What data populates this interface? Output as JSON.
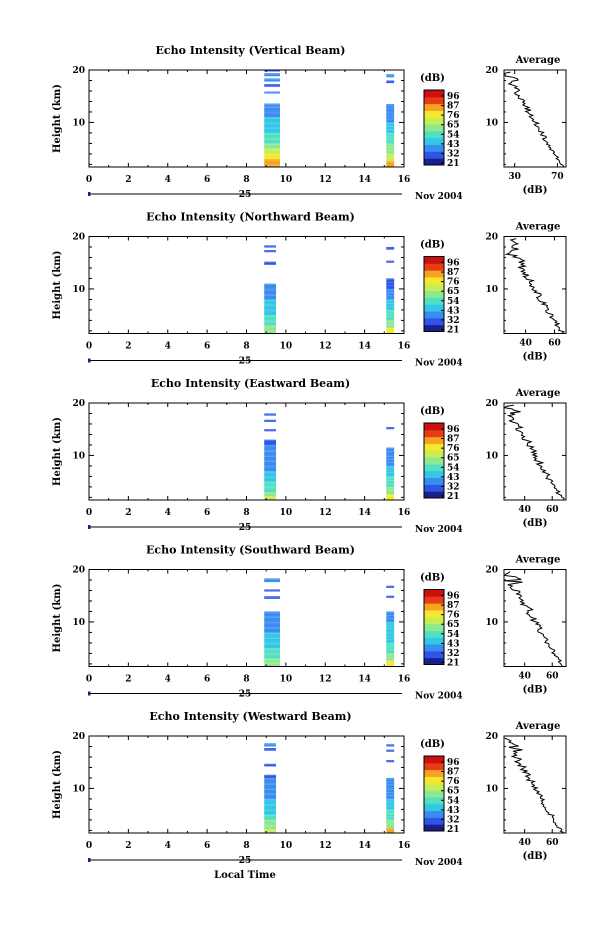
{
  "figure": {
    "xlabel": "Local Time",
    "date_day": "25",
    "date_month_year": "Nov 2004",
    "colorbar_label": "(dB)",
    "colorbar_ticks": [
      "96",
      "87",
      "76",
      "65",
      "54",
      "43",
      "32",
      "21"
    ],
    "avg_title": "Average",
    "avg_xlabel": "(dB)",
    "ylabel": "Height (km)",
    "colors": {
      "scale": [
        "#1a1f8c",
        "#2e55e6",
        "#3a8cf0",
        "#33c7e6",
        "#52e0c2",
        "#8de890",
        "#c9ee55",
        "#f5e830",
        "#f7a31f",
        "#e83b18",
        "#cc1010"
      ]
    }
  },
  "chart_data": [
    {
      "type": "heatmap",
      "title": "Echo Intensity (Vertical Beam)",
      "x_ticks": [
        "0",
        "2",
        "4",
        "6",
        "8",
        "10",
        "12",
        "14",
        "16"
      ],
      "y_ticks": [
        "20",
        "10"
      ],
      "xlim": [
        0,
        16
      ],
      "ylim": [
        1.5,
        20
      ],
      "blocks": [
        {
          "x0": 8.9,
          "x1": 9.7,
          "rows": [
            [
              1.5,
              2,
              8.3
            ],
            [
              2,
              3,
              7.5
            ],
            [
              3,
              4,
              6.5
            ],
            [
              4,
              5,
              5.6
            ],
            [
              5,
              6,
              5.0
            ],
            [
              6,
              7,
              4.3
            ],
            [
              7,
              8,
              3.9
            ],
            [
              8,
              9,
              3.4
            ],
            [
              9,
              10,
              3.0
            ],
            [
              10,
              11,
              2.7
            ],
            [
              11,
              12,
              2.4
            ],
            [
              12,
              13,
              2.0
            ],
            [
              13,
              13.6,
              1.6
            ],
            [
              15.5,
              15.9,
              1.6
            ],
            [
              16.8,
              17.3,
              1.4
            ],
            [
              17.8,
              18.4,
              1.8
            ],
            [
              18.8,
              19.4,
              1.6
            ],
            [
              19.7,
              20,
              1.4
            ]
          ]
        },
        {
          "x0": 15.1,
          "x1": 15.5,
          "rows": [
            [
              1.5,
              2.6,
              7.5
            ],
            [
              2.6,
              4,
              6.2
            ],
            [
              4,
              6,
              5.0
            ],
            [
              6,
              8,
              4.0
            ],
            [
              8,
              10,
              3.0
            ],
            [
              10,
              12,
              2.3
            ],
            [
              12,
              13.5,
              1.5
            ],
            [
              17.5,
              18,
              1.4
            ],
            [
              18.6,
              19.2,
              1.5
            ]
          ]
        }
      ],
      "avg": {
        "xlim": [
          20,
          78
        ],
        "x_ticks": [
          "30",
          "70"
        ],
        "y_ticks": [
          "20",
          "10"
        ]
      }
    },
    {
      "type": "heatmap",
      "title": "Echo Intensity (Northward Beam)",
      "x_ticks": [
        "0",
        "2",
        "4",
        "6",
        "8",
        "10",
        "12",
        "14",
        "16"
      ],
      "y_ticks": [
        "20",
        "10"
      ],
      "xlim": [
        0,
        16
      ],
      "ylim": [
        1.5,
        20
      ],
      "blocks": [
        {
          "x0": 8.9,
          "x1": 9.5,
          "rows": [
            [
              1.5,
              2,
              5.2
            ],
            [
              2,
              3,
              4.6
            ],
            [
              3,
              4,
              4.1
            ],
            [
              4,
              5,
              3.7
            ],
            [
              5,
              6,
              3.3
            ],
            [
              6,
              7,
              2.9
            ],
            [
              7,
              8,
              2.5
            ],
            [
              8,
              9,
              2.2
            ],
            [
              9,
              10,
              1.9
            ],
            [
              10,
              11,
              1.6
            ],
            [
              14.6,
              15.2,
              1.3
            ],
            [
              17,
              17.4,
              1.3
            ],
            [
              17.9,
              18.3,
              1.3
            ]
          ]
        },
        {
          "x0": 15.1,
          "x1": 15.5,
          "rows": [
            [
              1.5,
              2.6,
              7.2
            ],
            [
              2.6,
              4,
              5.2
            ],
            [
              4,
              6,
              4.0
            ],
            [
              6,
              8,
              3.0
            ],
            [
              8,
              10,
              2.1
            ],
            [
              10,
              12,
              1.4
            ],
            [
              15,
              15.4,
              1.3
            ],
            [
              17.5,
              18,
              1.3
            ]
          ]
        }
      ],
      "avg": {
        "xlim": [
          25,
          68
        ],
        "x_ticks": [
          "40",
          "60"
        ],
        "y_ticks": [
          "20",
          "10"
        ]
      }
    },
    {
      "type": "heatmap",
      "title": "Echo Intensity (Eastward Beam)",
      "x_ticks": [
        "0",
        "2",
        "4",
        "6",
        "8",
        "10",
        "12",
        "14",
        "16"
      ],
      "y_ticks": [
        "20",
        "10"
      ],
      "xlim": [
        0,
        16
      ],
      "ylim": [
        1.5,
        20
      ],
      "blocks": [
        {
          "x0": 8.9,
          "x1": 9.5,
          "rows": [
            [
              1.5,
              2.2,
              5.8
            ],
            [
              2.2,
              3,
              5.0
            ],
            [
              3,
              4,
              4.3
            ],
            [
              4,
              5,
              3.6
            ],
            [
              5,
              6,
              3.0
            ],
            [
              6,
              7,
              2.6
            ],
            [
              7,
              8,
              2.2
            ],
            [
              8,
              9,
              1.9
            ],
            [
              9,
              10,
              1.7
            ],
            [
              10,
              11,
              1.6
            ],
            [
              11,
              12,
              1.5
            ],
            [
              12,
              13,
              1.4
            ],
            [
              14.6,
              15,
              1.3
            ],
            [
              16.4,
              16.8,
              1.3
            ],
            [
              17.6,
              18,
              1.3
            ]
          ]
        },
        {
          "x0": 15.1,
          "x1": 15.5,
          "rows": [
            [
              1.5,
              2.6,
              7.2
            ],
            [
              2.6,
              4,
              5.0
            ],
            [
              4,
              6,
              3.8
            ],
            [
              6,
              8,
              3.0
            ],
            [
              8,
              10,
              2.2
            ],
            [
              10,
              11.5,
              1.5
            ],
            [
              15,
              15.4,
              1.3
            ]
          ]
        }
      ],
      "avg": {
        "xlim": [
          25,
          70
        ],
        "x_ticks": [
          "40",
          "60"
        ],
        "y_ticks": [
          "20",
          "10"
        ]
      }
    },
    {
      "type": "heatmap",
      "title": "Echo Intensity (Southward Beam)",
      "x_ticks": [
        "0",
        "2",
        "4",
        "6",
        "8",
        "10",
        "12",
        "14",
        "16"
      ],
      "y_ticks": [
        "20",
        "10"
      ],
      "xlim": [
        0,
        16
      ],
      "ylim": [
        1.5,
        20
      ],
      "blocks": [
        {
          "x0": 8.9,
          "x1": 9.7,
          "rows": [
            [
              1.5,
              2.3,
              5.4
            ],
            [
              2.3,
              3,
              4.8
            ],
            [
              3,
              4,
              4.3
            ],
            [
              4,
              5,
              3.8
            ],
            [
              5,
              6,
              3.3
            ],
            [
              6,
              7,
              2.9
            ],
            [
              7,
              8,
              2.5
            ],
            [
              8,
              9,
              2.2
            ],
            [
              9,
              10,
              1.9
            ],
            [
              10,
              11,
              1.7
            ],
            [
              11,
              12,
              1.5
            ],
            [
              14.4,
              14.9,
              1.4
            ],
            [
              15.8,
              16.2,
              1.3
            ],
            [
              17.6,
              18.3,
              1.5
            ]
          ]
        },
        {
          "x0": 15.1,
          "x1": 15.5,
          "rows": [
            [
              1.5,
              2.6,
              7.2
            ],
            [
              2.6,
              4,
              5.0
            ],
            [
              4,
              6,
              4.0
            ],
            [
              6,
              8,
              3.2
            ],
            [
              8,
              10,
              2.6
            ],
            [
              10,
              12,
              2.0
            ],
            [
              14.6,
              15,
              1.4
            ],
            [
              16.5,
              16.9,
              1.3
            ]
          ]
        }
      ],
      "avg": {
        "xlim": [
          25,
          70
        ],
        "x_ticks": [
          "40",
          "60"
        ],
        "y_ticks": [
          "20",
          "10"
        ]
      }
    },
    {
      "type": "heatmap",
      "title": "Echo Intensity (Westward Beam)",
      "x_ticks": [
        "0",
        "2",
        "4",
        "6",
        "8",
        "10",
        "12",
        "14",
        "16"
      ],
      "y_ticks": [
        "20",
        "10"
      ],
      "xlim": [
        0,
        16
      ],
      "ylim": [
        1.5,
        20
      ],
      "blocks": [
        {
          "x0": 8.9,
          "x1": 9.5,
          "rows": [
            [
              1.5,
              2.2,
              6.0
            ],
            [
              2.2,
              3,
              5.2
            ],
            [
              3,
              4,
              4.5
            ],
            [
              4,
              5,
              3.9
            ],
            [
              5,
              6,
              3.4
            ],
            [
              6,
              7,
              3.0
            ],
            [
              7,
              8,
              2.6
            ],
            [
              8,
              9,
              2.3
            ],
            [
              9,
              10,
              2.0
            ],
            [
              10,
              11,
              1.7
            ],
            [
              11,
              12,
              1.5
            ],
            [
              12,
              12.6,
              1.4
            ],
            [
              14.2,
              14.7,
              1.4
            ],
            [
              17.2,
              17.7,
              1.4
            ],
            [
              18,
              18.6,
              1.5
            ]
          ]
        },
        {
          "x0": 15.1,
          "x1": 15.5,
          "rows": [
            [
              1.5,
              2.4,
              7.5
            ],
            [
              2.4,
              4,
              5.4
            ],
            [
              4,
              6,
              4.2
            ],
            [
              6,
              8,
              3.2
            ],
            [
              8,
              10,
              2.3
            ],
            [
              10,
              12,
              1.6
            ],
            [
              15,
              15.4,
              1.4
            ],
            [
              17,
              17.4,
              1.3
            ],
            [
              18,
              18.4,
              1.3
            ]
          ]
        }
      ],
      "avg": {
        "xlim": [
          25,
          70
        ],
        "x_ticks": [
          "40",
          "60"
        ],
        "y_ticks": [
          "20",
          "10"
        ]
      }
    }
  ]
}
